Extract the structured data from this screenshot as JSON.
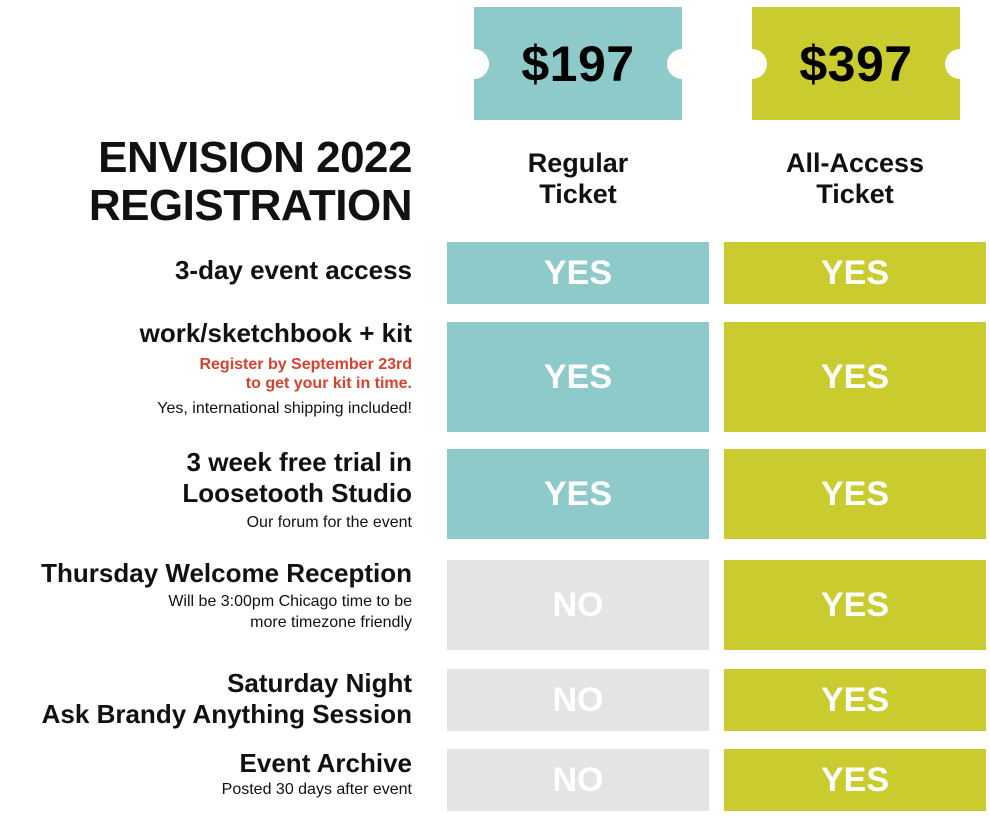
{
  "tickets": {
    "regular": {
      "price": "$197",
      "label_line1": "Regular",
      "label_line2": "Ticket"
    },
    "all_access": {
      "price": "$397",
      "label_line1": "All-Access",
      "label_line2": "Ticket"
    }
  },
  "title": {
    "line1": "ENVISION 2022",
    "line2": "REGISTRATION"
  },
  "features": [
    {
      "main": [
        "3-day event access"
      ],
      "red": [],
      "notes": [],
      "regular": "YES",
      "all_access": "YES"
    },
    {
      "main": [
        "work/sketchbook + kit"
      ],
      "red": [
        "Register by September 23rd",
        "to get your kit in time."
      ],
      "notes": [
        "Yes, international shipping included!"
      ],
      "regular": "YES",
      "all_access": "YES"
    },
    {
      "main": [
        "3 week free trial in",
        "Loosetooth Studio"
      ],
      "red": [],
      "notes": [
        "Our forum for the event"
      ],
      "regular": "YES",
      "all_access": "YES"
    },
    {
      "main": [
        "Thursday Welcome Reception"
      ],
      "red": [],
      "notes": [
        "Will be 3:00pm Chicago time to be",
        "more timezone friendly"
      ],
      "regular": "NO",
      "all_access": "YES"
    },
    {
      "main": [
        "Saturday Night",
        "Ask Brandy Anything Session"
      ],
      "red": [],
      "notes": [],
      "regular": "NO",
      "all_access": "YES"
    },
    {
      "main": [
        "Event Archive"
      ],
      "red": [],
      "notes": [
        "Posted 30 days after event"
      ],
      "regular": "NO",
      "all_access": "YES"
    }
  ],
  "colors": {
    "regular": "#8fcaca",
    "all_access": "#c9cb2f",
    "no": "#e4e4e4",
    "highlight": "#d8412c"
  }
}
